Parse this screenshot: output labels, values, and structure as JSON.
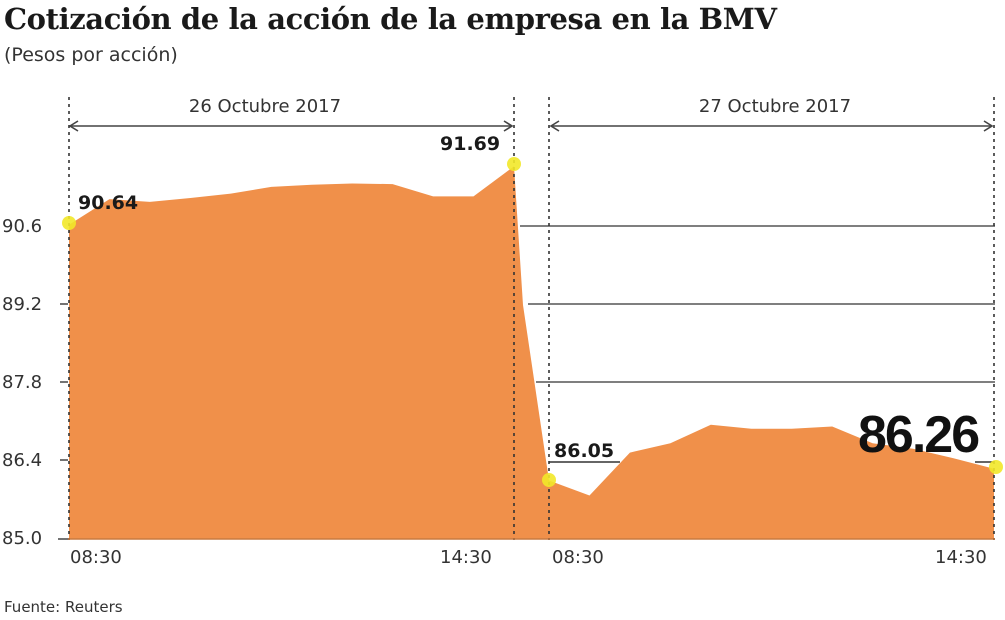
{
  "title": "Cotización de la acción de la empresa en la BMV",
  "subtitle": "(Pesos por acción)",
  "source": "Fuente: Reuters",
  "colors": {
    "area_fill": "#F0904A",
    "marker": "#F2E829",
    "grid": "#555555",
    "text": "#333333"
  },
  "y_ticks": [
    "90.6",
    "89.2",
    "87.8",
    "86.4",
    "85.0"
  ],
  "sessions": [
    {
      "date_label": "26 Octubre 2017",
      "start_time": "08:30",
      "end_time": "14:30"
    },
    {
      "date_label": "27 Octubre 2017",
      "start_time": "08:30",
      "end_time": "14:30"
    }
  ],
  "annotations": {
    "open_day1": "90.64",
    "close_day1": "91.69",
    "open_day2": "86.05",
    "close_day2": "86.26"
  },
  "chart_data": {
    "type": "area",
    "title": "Cotización de la acción de la empresa en la BMV",
    "subtitle": "(Pesos por acción)",
    "xlabel": "",
    "ylabel": "Pesos por acción",
    "ylim": [
      85.0,
      92.0
    ],
    "y_ticks": [
      85.0,
      86.4,
      87.8,
      89.2,
      90.6
    ],
    "grid": true,
    "source": "Fuente: Reuters",
    "series": [
      {
        "name": "26 Octubre 2017",
        "x_range": [
          "08:30",
          "14:30"
        ],
        "values": [
          90.64,
          91.1,
          91.05,
          91.12,
          91.2,
          91.32,
          91.36,
          91.38,
          91.37,
          91.15,
          91.15,
          91.69
        ]
      },
      {
        "name": "27 Octubre 2017",
        "x_range": [
          "08:30",
          "14:30"
        ],
        "values": [
          86.05,
          85.78,
          86.55,
          86.72,
          87.05,
          86.98,
          86.98,
          87.02,
          86.72,
          86.62,
          86.45,
          86.26
        ]
      }
    ],
    "annotations": [
      {
        "label": "90.64",
        "session": 1,
        "point": "open"
      },
      {
        "label": "91.69",
        "session": 1,
        "point": "close"
      },
      {
        "label": "86.05",
        "session": 2,
        "point": "open"
      },
      {
        "label": "86.26",
        "session": 2,
        "point": "close"
      }
    ]
  }
}
